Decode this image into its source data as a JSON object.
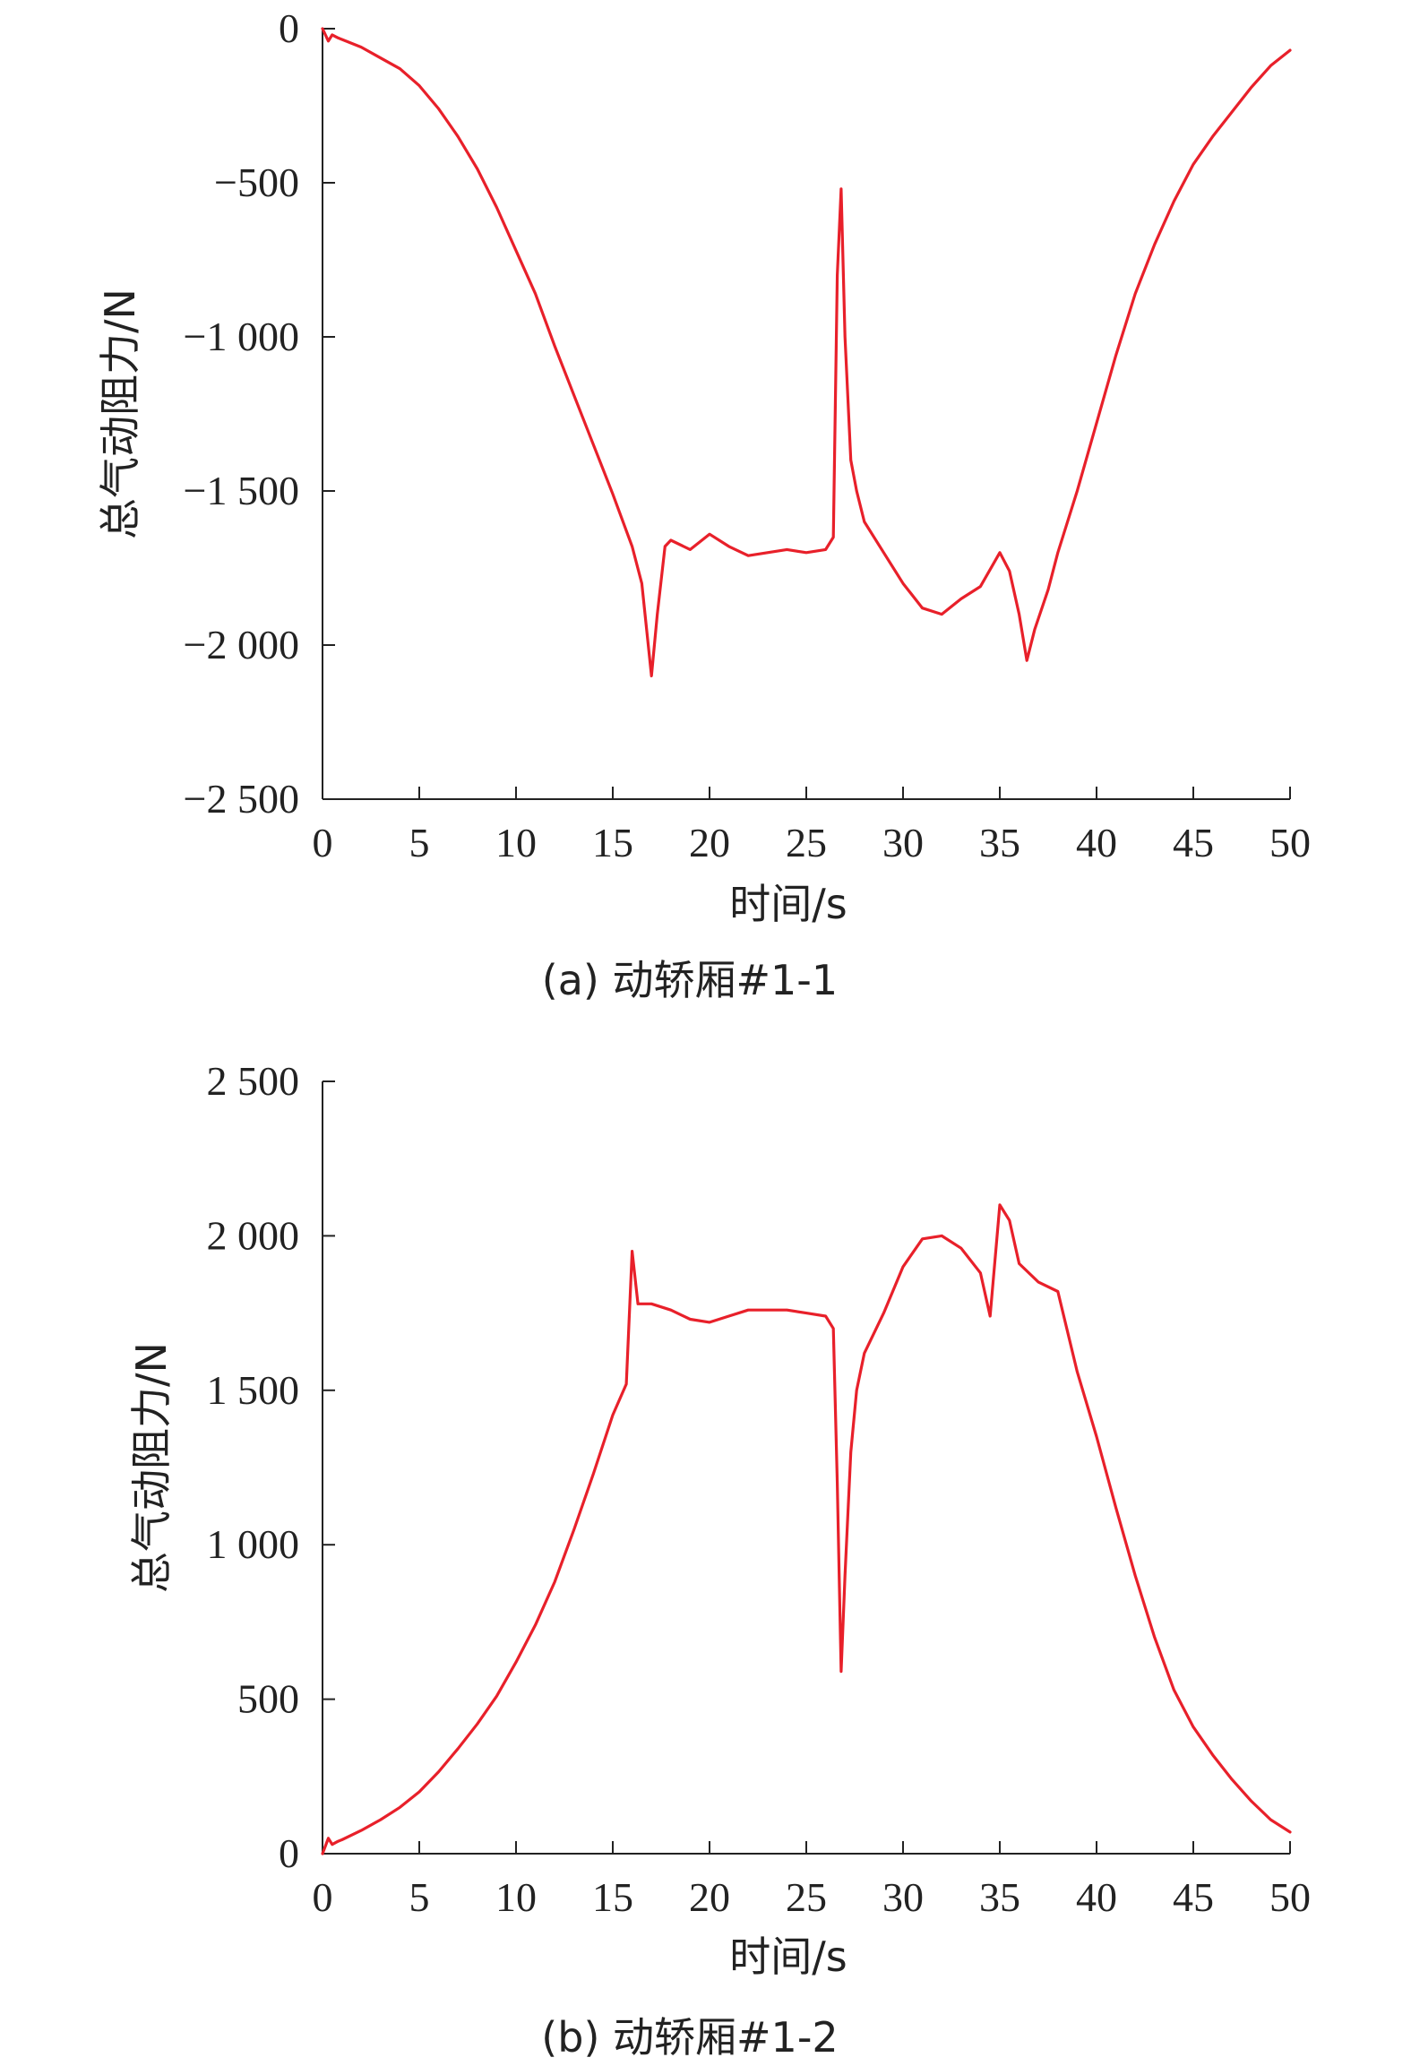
{
  "chart_data": [
    {
      "type": "line",
      "caption": "(a) 动轿厢#1-1",
      "xlabel": "时间/s",
      "ylabel": "总气动阻力/N",
      "xlim": [
        0,
        50
      ],
      "ylim": [
        -2500,
        0
      ],
      "xticks": [
        0,
        5,
        10,
        15,
        20,
        25,
        30,
        35,
        40,
        45,
        50
      ],
      "xtick_labels": [
        "0",
        "5",
        "10",
        "15",
        "20",
        "25",
        "30",
        "35",
        "40",
        "45",
        "50"
      ],
      "yticks": [
        0,
        -500,
        -1000,
        -1500,
        -2000,
        -2500
      ],
      "ytick_labels": [
        "0",
        "−500",
        "−1 000",
        "−1 500",
        "−2 000",
        "−2 500"
      ],
      "grid": false,
      "series": [
        {
          "color": "#e8202a",
          "x": [
            0,
            0.3,
            0.5,
            0.8,
            1,
            2,
            3,
            4,
            5,
            6,
            7,
            8,
            9,
            10,
            11,
            12,
            13,
            14,
            15,
            16,
            16.5,
            17.0,
            17.3,
            17.7,
            18,
            19,
            20,
            21,
            22,
            23,
            24,
            25,
            26,
            26.4,
            26.6,
            26.8,
            27.0,
            27.3,
            27.6,
            28,
            29,
            30,
            31,
            32,
            33,
            34,
            35,
            35.5,
            36,
            36.4,
            36.8,
            37.5,
            38,
            39,
            40,
            41,
            42,
            43,
            44,
            45,
            46,
            47,
            48,
            49,
            50
          ],
          "y": [
            0,
            -40,
            -20,
            -30,
            -35,
            -60,
            -95,
            -130,
            -185,
            -260,
            -350,
            -455,
            -580,
            -720,
            -860,
            -1030,
            -1190,
            -1350,
            -1510,
            -1680,
            -1800,
            -2100,
            -1900,
            -1680,
            -1660,
            -1690,
            -1640,
            -1680,
            -1710,
            -1700,
            -1690,
            -1700,
            -1690,
            -1650,
            -800,
            -520,
            -1000,
            -1400,
            -1500,
            -1600,
            -1700,
            -1800,
            -1880,
            -1900,
            -1850,
            -1810,
            -1700,
            -1760,
            -1900,
            -2050,
            -1950,
            -1820,
            -1700,
            -1500,
            -1280,
            -1060,
            -860,
            -700,
            -560,
            -440,
            -350,
            -270,
            -190,
            -120,
            -70
          ]
        }
      ]
    },
    {
      "type": "line",
      "caption": "(b) 动轿厢#1-2",
      "xlabel": "时间/s",
      "ylabel": "总气动阻力/N",
      "xlim": [
        0,
        50
      ],
      "ylim": [
        0,
        2500
      ],
      "xticks": [
        0,
        5,
        10,
        15,
        20,
        25,
        30,
        35,
        40,
        45,
        50
      ],
      "xtick_labels": [
        "0",
        "5",
        "10",
        "15",
        "20",
        "25",
        "30",
        "35",
        "40",
        "45",
        "50"
      ],
      "yticks": [
        0,
        500,
        1000,
        1500,
        2000,
        2500
      ],
      "ytick_labels": [
        "0",
        "500",
        "1 000",
        "1 500",
        "2 000",
        "2 500"
      ],
      "grid": false,
      "series": [
        {
          "color": "#e8202a",
          "x": [
            0,
            0.3,
            0.5,
            0.8,
            1,
            2,
            3,
            4,
            5,
            6,
            7,
            8,
            9,
            10,
            11,
            12,
            13,
            14,
            15,
            15.7,
            16,
            16.3,
            17,
            18,
            19,
            20,
            21,
            22,
            23,
            24,
            25,
            26,
            26.4,
            26.6,
            26.8,
            27.0,
            27.3,
            27.6,
            28,
            29,
            30,
            31,
            32,
            33,
            34,
            34.5,
            35,
            35.5,
            36,
            37,
            38,
            39,
            40,
            41,
            42,
            43,
            44,
            45,
            46,
            47,
            48,
            49,
            50
          ],
          "y": [
            0,
            50,
            30,
            40,
            45,
            75,
            110,
            150,
            200,
            265,
            340,
            420,
            510,
            620,
            740,
            880,
            1050,
            1230,
            1420,
            1520,
            1950,
            1780,
            1780,
            1760,
            1730,
            1720,
            1740,
            1760,
            1760,
            1760,
            1750,
            1740,
            1700,
            1200,
            590,
            900,
            1300,
            1500,
            1620,
            1750,
            1900,
            1990,
            2000,
            1960,
            1880,
            1740,
            2100,
            2050,
            1910,
            1850,
            1820,
            1560,
            1350,
            1120,
            900,
            700,
            530,
            410,
            320,
            240,
            170,
            110,
            70
          ]
        }
      ]
    }
  ]
}
